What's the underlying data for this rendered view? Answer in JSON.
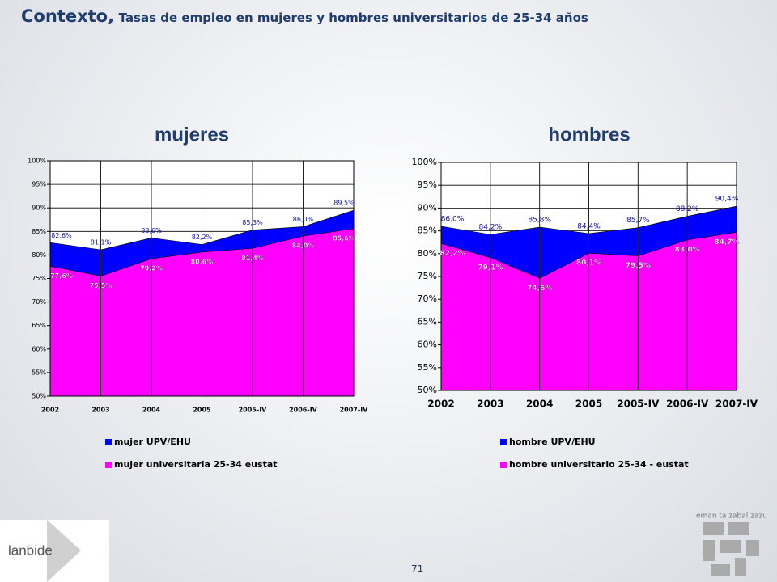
{
  "title": "Contexto,",
  "subtitle": "Tasas de empleo en mujeres y hombres universitarios de 25-34 años",
  "page_number": "71",
  "logos": {
    "left": "lanbide",
    "right": "eman ta zabal zazu"
  },
  "chart_data": [
    {
      "type": "area",
      "title": "mujeres",
      "categories": [
        "2002",
        "2003",
        "2004",
        "2005",
        "2005-IV",
        "2006-IV",
        "2007-IV"
      ],
      "series": [
        {
          "name": "mujer UPV/EHU",
          "color": "#0000ff",
          "values": [
            82.6,
            81.1,
            83.6,
            82.2,
            85.3,
            86.0,
            89.5
          ],
          "value_labels": [
            "82,6%",
            "81,1%",
            "83,6%",
            "82,2%",
            "85,3%",
            "86,0%",
            "89,5%"
          ]
        },
        {
          "name": "mujer universitaria 25-34  eustat",
          "color": "#ff00ff",
          "values": [
            77.6,
            75.5,
            79.2,
            80.6,
            81.4,
            84.0,
            85.6
          ],
          "value_labels": [
            "77,6%",
            "75,5%",
            "79,2%",
            "80,6%",
            "81,4%",
            "84,0%",
            "85,6%"
          ]
        }
      ],
      "ylim": [
        50,
        100
      ],
      "yticks": [
        {
          "value": 50,
          "label": "50%"
        },
        {
          "value": 55,
          "label": "55%"
        },
        {
          "value": 60,
          "label": "60%"
        },
        {
          "value": 65,
          "label": "65%"
        },
        {
          "value": 70,
          "label": "70%"
        },
        {
          "value": 75,
          "label": "75%"
        },
        {
          "value": 80,
          "label": "80%"
        },
        {
          "value": 85,
          "label": "85%"
        },
        {
          "value": 90,
          "label": "90%"
        },
        {
          "value": 95,
          "label": "95%"
        },
        {
          "value": 100,
          "label": "100%"
        }
      ],
      "grid": true
    },
    {
      "type": "area",
      "title": "hombres",
      "categories": [
        "2002",
        "2003",
        "2004",
        "2005",
        "2005-IV",
        "2006-IV",
        "2007-IV"
      ],
      "series": [
        {
          "name": "hombre UPV/EHU",
          "color": "#0000ff",
          "values": [
            86.0,
            84.2,
            85.8,
            84.4,
            85.7,
            88.2,
            90.4
          ],
          "value_labels": [
            "86,0%",
            "84,2%",
            "85,8%",
            "84,4%",
            "85,7%",
            "88,2%",
            "90,4%"
          ]
        },
        {
          "name": "hombre universitario 25-34 - eustat",
          "color": "#ff00ff",
          "values": [
            82.2,
            79.1,
            74.6,
            80.1,
            79.5,
            83.0,
            84.7
          ],
          "value_labels": [
            "82,2%",
            "79,1%",
            "74,6%",
            "80,1%",
            "79,5%",
            "83,0%",
            "84,7%"
          ]
        }
      ],
      "ylim": [
        50,
        100
      ],
      "yticks": [
        {
          "value": 50,
          "label": "50%"
        },
        {
          "value": 55,
          "label": "55%"
        },
        {
          "value": 60,
          "label": "60%"
        },
        {
          "value": 65,
          "label": "65%"
        },
        {
          "value": 70,
          "label": "70%"
        },
        {
          "value": 75,
          "label": "75%"
        },
        {
          "value": 80,
          "label": "80%"
        },
        {
          "value": 85,
          "label": "85%"
        },
        {
          "value": 90,
          "label": "90%"
        },
        {
          "value": 95,
          "label": "95%"
        },
        {
          "value": 100,
          "label": "100%"
        }
      ],
      "grid": true
    }
  ]
}
